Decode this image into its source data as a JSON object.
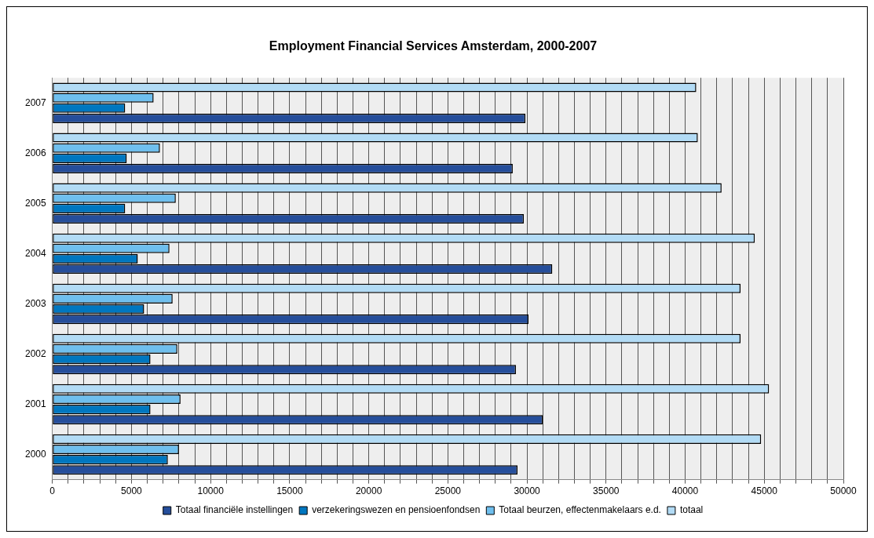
{
  "chart_data": {
    "type": "bar",
    "orientation": "horizontal",
    "title": "Employment Financial Services Amsterdam, 2000-2007",
    "categories": [
      "2007",
      "2006",
      "2005",
      "2004",
      "2003",
      "2002",
      "2001",
      "2000"
    ],
    "series": [
      {
        "name": "Totaal financiële instellingen",
        "color": "#254e9b",
        "values": [
          29900,
          29100,
          29800,
          31600,
          30100,
          29300,
          31000,
          29400
        ]
      },
      {
        "name": "verzekeringswezen en pensioenfondsen",
        "color": "#0077c0",
        "values": [
          4600,
          4700,
          4600,
          5400,
          5800,
          6200,
          6200,
          7300
        ]
      },
      {
        "name": "Totaal beurzen, effectenmakelaars e.d.",
        "color": "#6fbfee",
        "values": [
          6400,
          6800,
          7800,
          7400,
          7600,
          7900,
          8100,
          8000
        ]
      },
      {
        "name": "totaal",
        "color": "#b2dbf5",
        "values": [
          40700,
          40800,
          42300,
          44400,
          43500,
          43500,
          45300,
          44800
        ]
      }
    ],
    "xlim": [
      0,
      50000
    ],
    "xticks": [
      0,
      {
        "value": 1000,
        "label": null
      },
      {
        "value": 2000,
        "label": null
      },
      {
        "value": 3000,
        "label": null
      },
      {
        "value": 4000,
        "label": null
      },
      5000,
      {
        "value": 6000,
        "label": null
      },
      {
        "value": 7000,
        "label": null
      },
      {
        "value": 8000,
        "label": null
      },
      {
        "value": 9000,
        "label": null
      },
      10000,
      {
        "value": 11000,
        "label": null
      },
      {
        "value": 12000,
        "label": null
      },
      {
        "value": 13000,
        "label": null
      },
      {
        "value": 14000,
        "label": null
      },
      15000,
      {
        "value": 16000,
        "label": null
      },
      {
        "value": 17000,
        "label": null
      },
      {
        "value": 18000,
        "label": null
      },
      {
        "value": 19000,
        "label": null
      },
      20000,
      {
        "value": 21000,
        "label": null
      },
      {
        "value": 22000,
        "label": null
      },
      {
        "value": 23000,
        "label": null
      },
      {
        "value": 24000,
        "label": null
      },
      25000,
      {
        "value": 26000,
        "label": null
      },
      {
        "value": 27000,
        "label": null
      },
      {
        "value": 28000,
        "label": null
      },
      {
        "value": 29000,
        "label": null
      },
      30000,
      {
        "value": 31000,
        "label": null
      },
      {
        "value": 32000,
        "label": null
      },
      {
        "value": 33000,
        "label": null
      },
      {
        "value": 34000,
        "label": null
      },
      35000,
      {
        "value": 36000,
        "label": null
      },
      {
        "value": 37000,
        "label": null
      },
      {
        "value": 38000,
        "label": null
      },
      {
        "value": 39000,
        "label": null
      },
      40000,
      {
        "value": 41000,
        "label": null
      },
      {
        "value": 42000,
        "label": null
      },
      {
        "value": 43000,
        "label": null
      },
      {
        "value": 44000,
        "label": null
      },
      45000,
      {
        "value": 46000,
        "label": null
      },
      {
        "value": 47000,
        "label": null
      },
      {
        "value": 48000,
        "label": null
      },
      {
        "value": 49000,
        "label": null
      },
      50000
    ],
    "grid": "x",
    "legend": "bottom"
  }
}
